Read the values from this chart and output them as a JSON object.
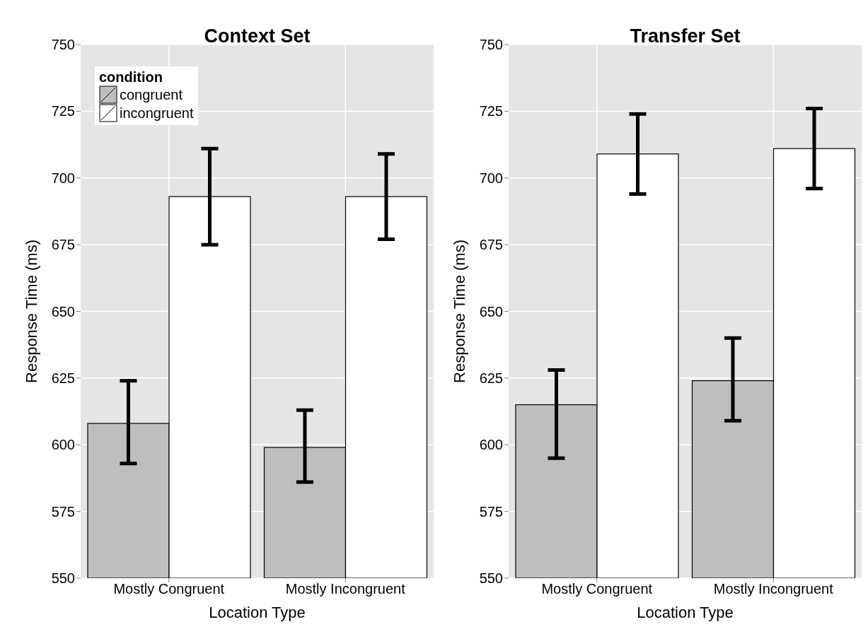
{
  "chart_data": [
    {
      "type": "bar",
      "title": "Context Set",
      "xlabel": "Location Type",
      "ylabel": "Response Time (ms)",
      "legend_title": "condition",
      "categories": [
        "Mostly Congruent",
        "Mostly Incongruent"
      ],
      "series": [
        {
          "name": "congruent",
          "color": "#bebebe",
          "values": [
            608,
            599
          ],
          "errors": [
            [
              593,
              624
            ],
            [
              586,
              613
            ]
          ]
        },
        {
          "name": "incongruent",
          "color": "#ffffff",
          "values": [
            693,
            693
          ],
          "errors": [
            [
              675,
              711
            ],
            [
              677,
              709
            ]
          ]
        }
      ],
      "ylim": [
        550,
        750
      ],
      "yticks": [
        550,
        575,
        600,
        625,
        650,
        675,
        700,
        725,
        750
      ],
      "grid": true,
      "legend": "top left"
    },
    {
      "type": "bar",
      "title": "Transfer Set",
      "xlabel": "Location Type",
      "ylabel": "Response Time (ms)",
      "categories": [
        "Mostly Congruent",
        "Mostly Incongruent"
      ],
      "series": [
        {
          "color": "#bebebe",
          "values": [
            615,
            624
          ],
          "errors": [
            [
              595,
              628
            ],
            [
              609,
              640
            ]
          ]
        },
        {
          "color": "#ffffff",
          "values": [
            709,
            711
          ],
          "errors": [
            [
              694,
              724
            ],
            [
              696,
              726
            ]
          ]
        }
      ],
      "ylim": [
        550,
        750
      ],
      "yticks": [
        550,
        575,
        600,
        625,
        650,
        675,
        700,
        725,
        750
      ],
      "grid": true,
      "legend": false
    }
  ]
}
